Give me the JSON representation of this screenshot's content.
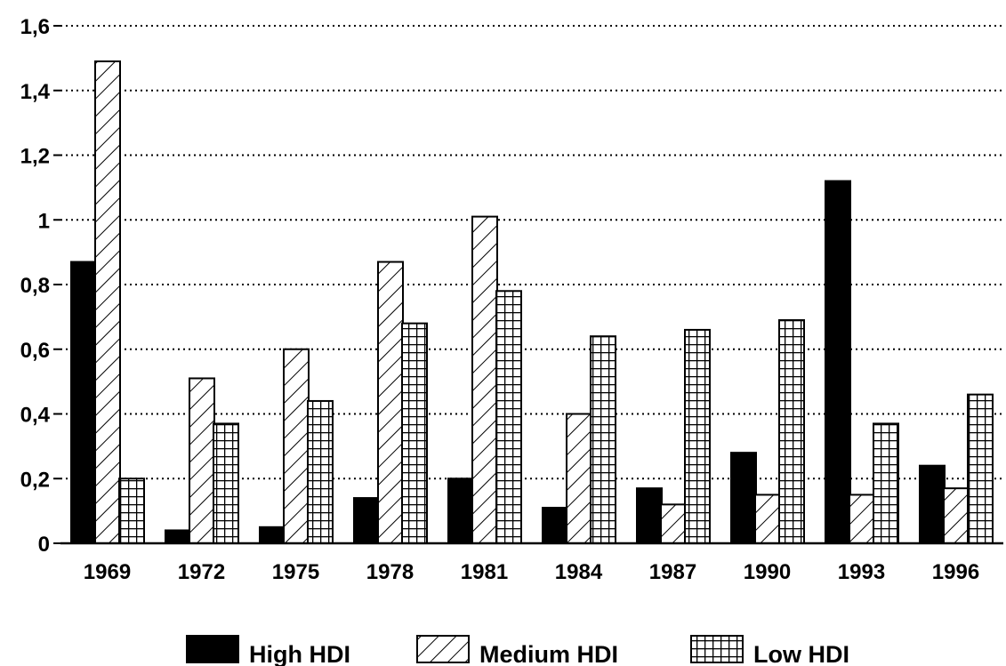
{
  "chart_data": {
    "type": "bar",
    "categories": [
      "1969",
      "1972",
      "1975",
      "1978",
      "1981",
      "1984",
      "1987",
      "1990",
      "1993",
      "1996"
    ],
    "series": [
      {
        "name": "High HDI",
        "pattern": "solid",
        "values": [
          0.87,
          0.04,
          0.05,
          0.14,
          0.2,
          0.11,
          0.17,
          0.28,
          1.12,
          0.24
        ]
      },
      {
        "name": "Medium HDI",
        "pattern": "diagonal-hatch",
        "values": [
          1.49,
          0.51,
          0.6,
          0.87,
          1.01,
          0.4,
          0.12,
          0.15,
          0.15,
          0.17
        ]
      },
      {
        "name": "Low HDI",
        "pattern": "grid-hatch",
        "values": [
          0.2,
          0.37,
          0.44,
          0.68,
          0.78,
          0.64,
          0.66,
          0.69,
          0.37,
          0.46
        ]
      }
    ],
    "yticks": [
      {
        "value": 0,
        "label": "0"
      },
      {
        "value": 0.2,
        "label": "0,2"
      },
      {
        "value": 0.4,
        "label": "0,4"
      },
      {
        "value": 0.6,
        "label": "0,6"
      },
      {
        "value": 0.8,
        "label": "0,8"
      },
      {
        "value": 1,
        "label": "1"
      },
      {
        "value": 1.2,
        "label": "1,2"
      },
      {
        "value": 1.4,
        "label": "1,4"
      },
      {
        "value": 1.6,
        "label": "1,6"
      }
    ],
    "ylim": [
      0,
      1.6
    ],
    "grid": "horizontal-dotted",
    "legend_position": "bottom",
    "colors": {
      "bar": "#000000",
      "background": "#ffffff"
    }
  }
}
